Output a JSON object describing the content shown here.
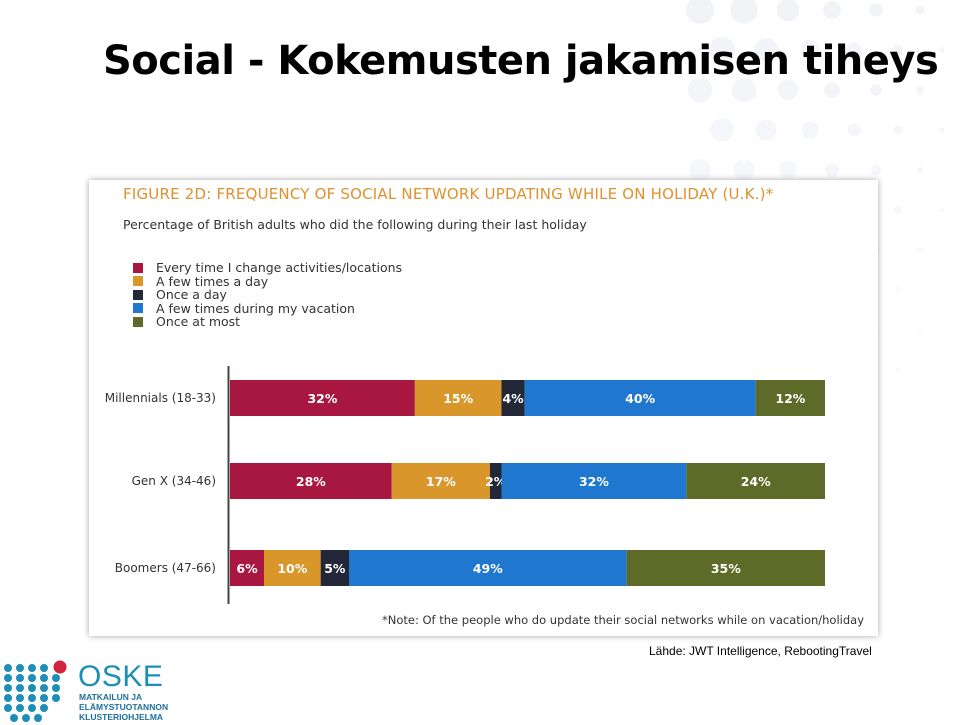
{
  "slide": {
    "title": "Social - Kokemusten jakamisen tiheys",
    "source": "Lähde:  JWT Intelligence, RebootingTravel"
  },
  "figure": {
    "title": "FIGURE 2D: FREQUENCY OF SOCIAL NETWORK UPDATING WHILE ON HOLIDAY (U.K.)*",
    "subtitle": "Percentage of British adults who did the following during their last holiday",
    "note": "*Note: Of the people who do update their social networks while on vacation/holiday"
  },
  "colors": {
    "every_time": "#a8173f",
    "few_times_day": "#d9962a",
    "once_day": "#222838",
    "few_times_vacation": "#1f77d0",
    "once_at_most": "#5e6b28",
    "title_orange": "#e0912e",
    "logo_blue": "#1d8fb6",
    "logo_red": "#d0233f"
  },
  "chart_data": {
    "type": "bar",
    "orientation": "horizontal-stacked-100",
    "title": "FIGURE 2D: FREQUENCY OF SOCIAL NETWORK UPDATING WHILE ON HOLIDAY (U.K.)*",
    "subtitle": "Percentage of British adults who did the following during their last holiday",
    "legend_position": "top-left",
    "categories": [
      "Millennials (18-33)",
      "Gen X (34-46)",
      "Boomers (47-66)"
    ],
    "series": [
      {
        "name": "Every time I change activities/locations",
        "values": [
          32,
          28,
          6
        ],
        "labels": [
          "32%",
          "28%",
          "6%"
        ]
      },
      {
        "name": "A few times a day",
        "values": [
          15,
          17,
          10
        ],
        "labels": [
          "15%",
          "17%",
          "10%"
        ]
      },
      {
        "name": "Once a day",
        "values": [
          4,
          2,
          5
        ],
        "labels": [
          "4%",
          "2%",
          "5%"
        ]
      },
      {
        "name": "A few times during my vacation",
        "values": [
          40,
          32,
          49
        ],
        "labels": [
          "40%",
          "32%",
          "49%"
        ]
      },
      {
        "name": "Once at most",
        "values": [
          12,
          24,
          35
        ],
        "labels": [
          "12%",
          "24%",
          "35%"
        ]
      }
    ],
    "note": "*Note: Of the people who do update their social networks while on vacation/holiday"
  },
  "logo": {
    "name": "OSKE",
    "subtitle": "MATKAILUN JA\nELÄMYSTUOTANNON\nKLUSTERIOHJELMA"
  }
}
